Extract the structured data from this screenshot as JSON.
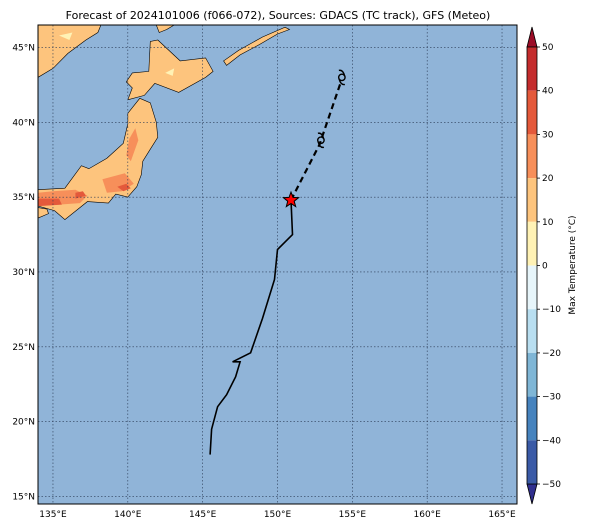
{
  "title": "Forecast of 2024101006 (f066-072), Sources: GDACS (TC track), GFS (Meteo)",
  "map": {
    "lon_range": [
      134,
      166
    ],
    "lat_range": [
      14.5,
      46.5
    ],
    "lon_ticks": [
      135,
      140,
      145,
      150,
      155,
      160,
      165
    ],
    "lon_labels": [
      "135°E",
      "140°E",
      "145°E",
      "150°E",
      "155°E",
      "160°E",
      "165°E"
    ],
    "lat_ticks": [
      15,
      20,
      25,
      30,
      35,
      40,
      45
    ],
    "lat_labels": [
      "15°N",
      "20°N",
      "25°N",
      "30°N",
      "35°N",
      "40°N",
      "45°N"
    ],
    "ocean_color": "#90b4d8",
    "gridlines": true
  },
  "track": {
    "observed": [
      [
        145.5,
        17.8
      ],
      [
        145.6,
        19.5
      ],
      [
        146.0,
        21.0
      ],
      [
        146.6,
        21.8
      ],
      [
        147.2,
        23.0
      ],
      [
        147.5,
        24.0
      ],
      [
        147.0,
        24.0
      ],
      [
        148.2,
        24.6
      ],
      [
        149.0,
        26.9
      ],
      [
        149.8,
        29.5
      ],
      [
        150.0,
        31.5
      ],
      [
        151.0,
        32.5
      ],
      [
        150.9,
        34.8
      ]
    ],
    "forecast": [
      [
        150.9,
        34.8
      ],
      [
        152.8,
        38.5
      ],
      [
        154.2,
        42.6
      ]
    ],
    "current_position": [
      150.9,
      34.8
    ],
    "storm_symbols": [
      [
        152.9,
        38.8
      ],
      [
        154.3,
        43.0
      ]
    ],
    "marker_color": "#ff0000"
  },
  "colorbar": {
    "label": "Max Temperature (°C)",
    "ticks": [
      "50",
      "40",
      "30",
      "20",
      "10",
      "0",
      "−10",
      "−20",
      "−30",
      "−40",
      "−50"
    ],
    "colors": [
      "#9b0c27",
      "#c42c2d",
      "#e4593b",
      "#f78f5a",
      "#fdc47d",
      "#fff2b5",
      "#e7f5fa",
      "#b8def0",
      "#7fb6d6",
      "#4683be",
      "#3a5aa6",
      "#302f8e"
    ]
  },
  "land_fill": {
    "low": "#fdc47d",
    "mid": "#f78f5a",
    "high": "#e4593b",
    "cold": "#fff2b5"
  }
}
